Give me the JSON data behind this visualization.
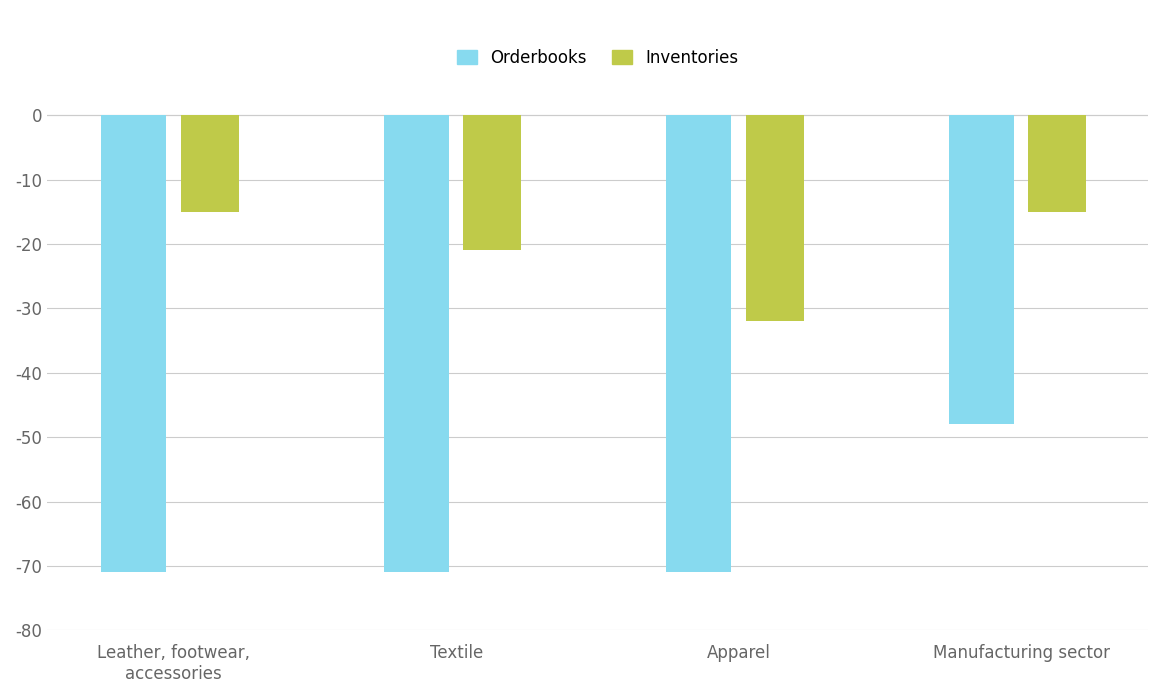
{
  "categories": [
    "Leather, footwear,\naccessories",
    "Textile",
    "Apparel",
    "Manufacturing sector"
  ],
  "orderbooks": [
    -71,
    -71,
    -71,
    -48
  ],
  "inventories": [
    -15,
    -21,
    -32,
    -15
  ],
  "orderbooks_color": "#87DAEF",
  "inventories_color": "#BFCA49",
  "legend_labels": [
    "Orderbooks",
    "Inventories"
  ],
  "ylim": [
    -80,
    5
  ],
  "yticks": [
    0,
    -10,
    -20,
    -30,
    -40,
    -50,
    -60,
    -70,
    -80
  ],
  "orderbooks_bar_width": 0.18,
  "inventories_bar_width": 0.16,
  "group_centers": [
    0.22,
    1.0,
    1.78,
    2.56
  ],
  "bar_gap": 0.04,
  "background_color": "#FFFFFF",
  "grid_color": "#CCCCCC",
  "label_fontsize": 12,
  "tick_fontsize": 12,
  "legend_fontsize": 12
}
